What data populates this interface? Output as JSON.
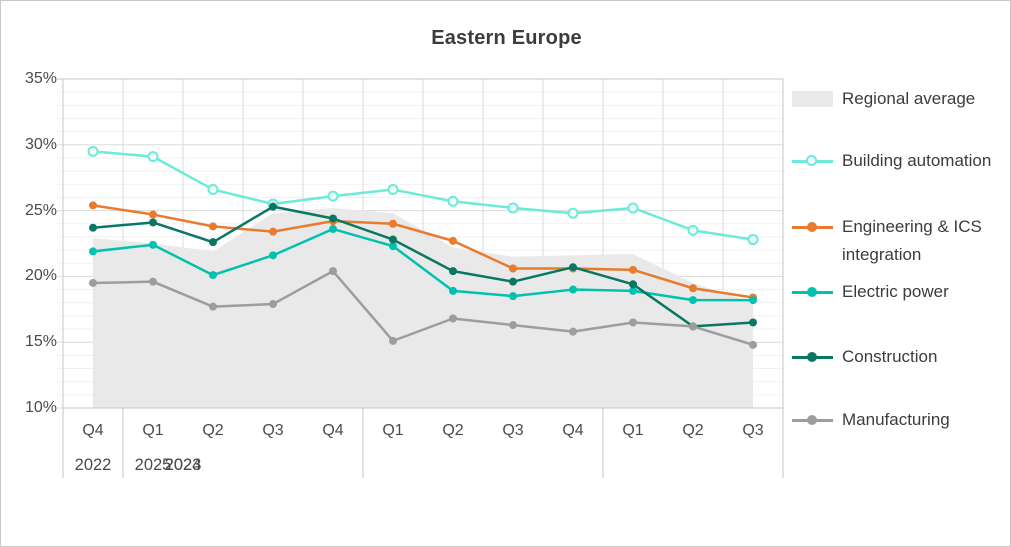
{
  "title": "Eastern Europe",
  "colors": {
    "regional_average_fill": "#e9e9e9",
    "building_automation": "#6ceada",
    "engineering_ics": "#e87b2e",
    "electric_power": "#00c2ae",
    "construction": "#0a7763",
    "manufacturing": "#9d9d9d",
    "grid_minor": "#f1f1f1",
    "grid_major": "#dcdcdc",
    "grid_vertical": "#d9d9d9",
    "axis_border": "#c6c6c6",
    "title_text": "#3c3c3c",
    "tick_text": "#4b4b4b"
  },
  "chart_data": {
    "type": "line",
    "title": "Eastern Europe",
    "unit": "%",
    "categories": [
      "Q4",
      "Q1",
      "Q2",
      "Q3",
      "Q4",
      "Q1",
      "Q2",
      "Q3",
      "Q4",
      "Q1",
      "Q2",
      "Q3"
    ],
    "year_groups": [
      {
        "label": "2022",
        "quarters": 1
      },
      {
        "label": "2023",
        "quarters": 4
      },
      {
        "label": "2024",
        "quarters": 4
      },
      {
        "label": "2025",
        "quarters": 3
      }
    ],
    "ylim": [
      10,
      35
    ],
    "y_major_step": 5,
    "y_minor_step": 1,
    "y_ticks": [
      "35%",
      "30%",
      "25%",
      "20%",
      "15%",
      "10%"
    ],
    "grid": "minor horizontal every 1%, major every 5%, vertical line per quarter",
    "legend_position": "right",
    "series": [
      {
        "name": "Regional average",
        "type": "area",
        "color": "#e9e9e9",
        "marker": "none",
        "values": [
          22.9,
          22.5,
          21.9,
          24.8,
          25.2,
          24.8,
          22.2,
          21.5,
          21.6,
          21.7,
          19.5,
          18.0
        ]
      },
      {
        "name": "Building automation",
        "type": "line",
        "color": "#6ceada",
        "marker": "open-circle",
        "values": [
          29.5,
          29.1,
          26.6,
          25.5,
          26.1,
          26.6,
          25.7,
          25.2,
          24.8,
          25.2,
          23.5,
          22.8
        ]
      },
      {
        "name": "Engineering & ICS integration",
        "type": "line",
        "color": "#e87b2e",
        "marker": "dot",
        "values": [
          25.4,
          24.7,
          23.8,
          23.4,
          24.2,
          24.0,
          22.7,
          20.6,
          20.6,
          20.5,
          19.1,
          18.4
        ]
      },
      {
        "name": "Electric power",
        "type": "line",
        "color": "#00c2ae",
        "marker": "dot",
        "values": [
          21.9,
          22.4,
          20.1,
          21.6,
          23.6,
          22.3,
          18.9,
          18.5,
          19.0,
          18.9,
          18.2,
          18.2
        ]
      },
      {
        "name": "Construction",
        "type": "line",
        "color": "#0a7763",
        "marker": "dot",
        "values": [
          23.7,
          24.1,
          22.6,
          25.3,
          24.4,
          22.8,
          20.4,
          19.6,
          20.7,
          19.4,
          16.2,
          16.5
        ]
      },
      {
        "name": "Manufacturing",
        "type": "line",
        "color": "#9d9d9d",
        "marker": "dot",
        "values": [
          19.5,
          19.6,
          17.7,
          17.9,
          20.4,
          15.1,
          16.8,
          16.3,
          15.8,
          16.5,
          16.2,
          14.8
        ]
      }
    ]
  }
}
